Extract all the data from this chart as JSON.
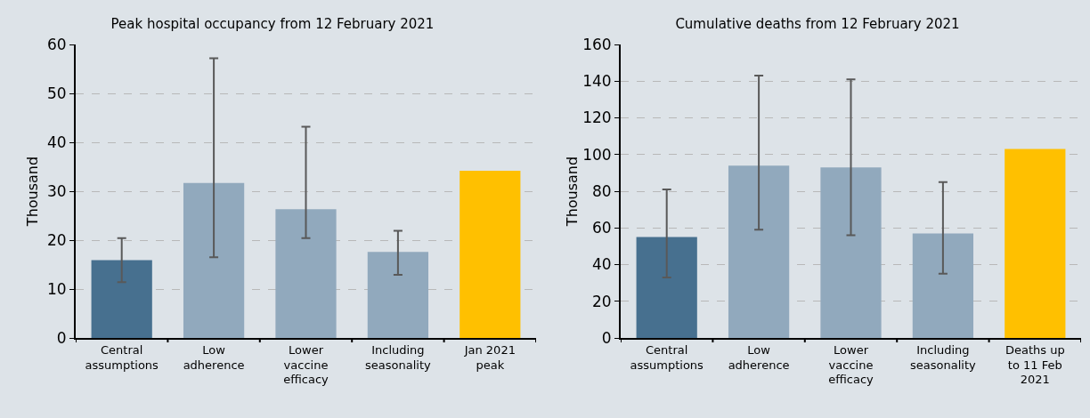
{
  "chart_data": [
    {
      "type": "bar",
      "title": "Peak hospital occupancy from 12 February 2021",
      "ylabel": "Thousand",
      "categories": [
        "Central assumptions",
        "Low adherence",
        "Lower vaccine efficacy",
        "Including seasonality",
        "Jan 2021 peak"
      ],
      "values": [
        15.9,
        31.7,
        26.3,
        17.6,
        34.2
      ],
      "colors": [
        "#47708f",
        "#91a9bd",
        "#91a9bd",
        "#91a9bd",
        "#ffc000"
      ],
      "errors": [
        [
          11.4,
          20.4
        ],
        [
          16.5,
          57.2
        ],
        [
          20.4,
          43.2
        ],
        [
          12.9,
          21.9
        ],
        null
      ],
      "ylim": [
        0,
        60
      ],
      "yticks": [
        0,
        10,
        20,
        30,
        40,
        50,
        60
      ],
      "grid": "y"
    },
    {
      "type": "bar",
      "title": "Cumulative deaths from 12 February 2021",
      "ylabel": "Thousand",
      "categories": [
        "Central assumptions",
        "Low adherence",
        "Lower vaccine efficacy",
        "Including seasonality",
        "Deaths up to 11 Feb 2021"
      ],
      "values": [
        55,
        94,
        93,
        57,
        103
      ],
      "colors": [
        "#47708f",
        "#91a9bd",
        "#91a9bd",
        "#91a9bd",
        "#ffc000"
      ],
      "errors": [
        [
          33,
          81
        ],
        [
          59,
          143
        ],
        [
          56,
          141
        ],
        [
          35,
          85
        ],
        null
      ],
      "ylim": [
        0,
        160
      ],
      "yticks": [
        0,
        20,
        40,
        60,
        80,
        100,
        120,
        140,
        160
      ],
      "grid": "y"
    }
  ]
}
